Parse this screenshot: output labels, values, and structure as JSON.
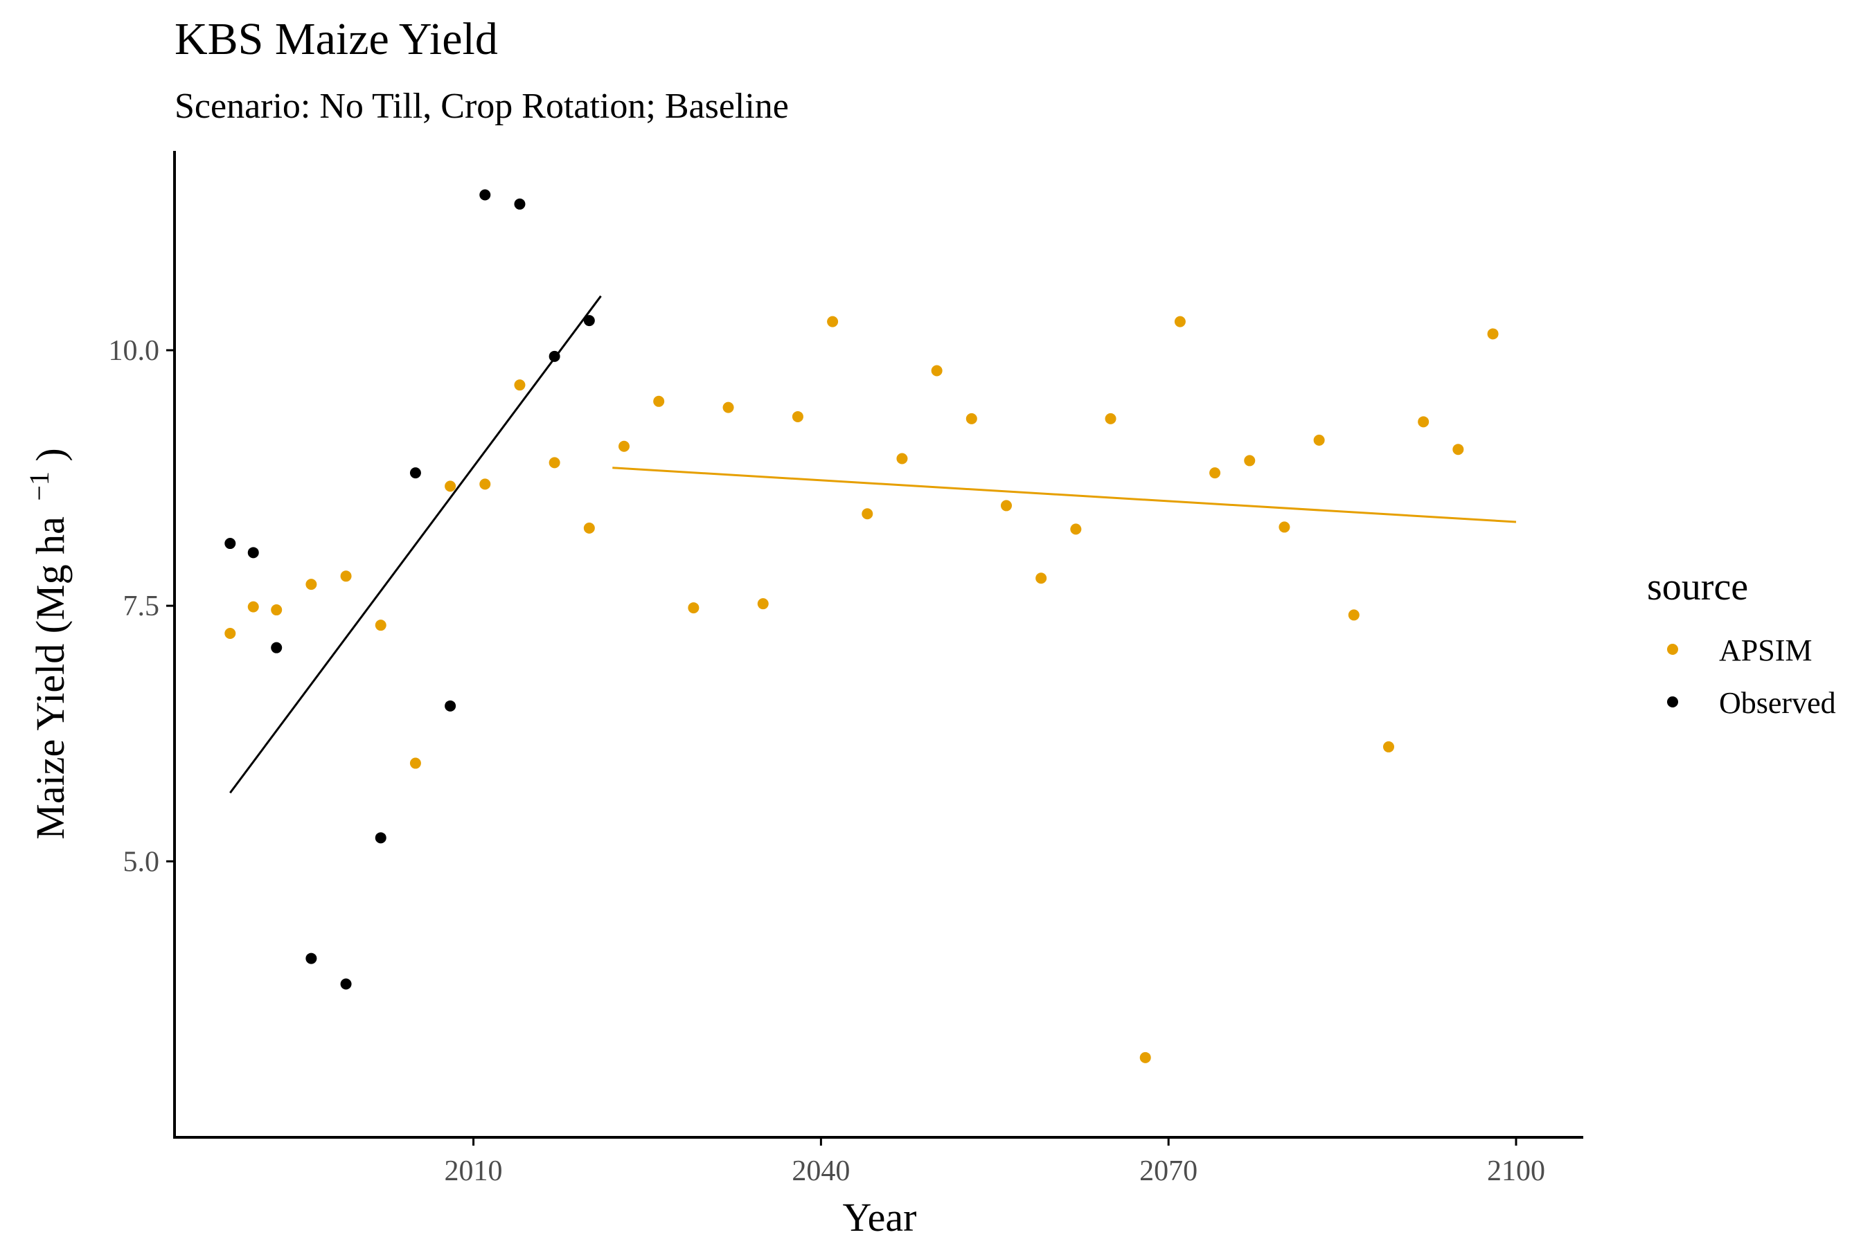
{
  "chart_data": {
    "type": "scatter",
    "title": "KBS Maize Yield",
    "subtitle": "Scenario: No Till, Crop Rotation; Baseline",
    "xlabel": "Year",
    "ylabel_main": "Maize Yield (Mg ha",
    "ylabel_sup": "−1",
    "ylabel_close": ")",
    "xlim": [
      1984.2,
      2105.8
    ],
    "ylim": [
      2.3,
      11.95
    ],
    "xticks": [
      2010,
      2040,
      2070,
      2100
    ],
    "xtick_labels": [
      "2010",
      "2040",
      "2070",
      "2100"
    ],
    "yticks": [
      5.0,
      7.5,
      10.0
    ],
    "ytick_labels": [
      "5.0",
      "7.5",
      "10.0"
    ],
    "grid": false,
    "legend": {
      "title": "source",
      "position": "right"
    },
    "colors": {
      "APSIM": "#E69F00",
      "Observed": "#000000"
    },
    "series": [
      {
        "name": "APSIM",
        "color": "#E69F00",
        "points": [
          [
            1989,
            7.23
          ],
          [
            1991,
            7.49
          ],
          [
            1993,
            7.46
          ],
          [
            1996,
            7.71
          ],
          [
            1999,
            7.79
          ],
          [
            2002,
            7.31
          ],
          [
            2005,
            5.96
          ],
          [
            2008,
            8.67
          ],
          [
            2011,
            8.69
          ],
          [
            2014,
            9.66
          ],
          [
            2017,
            8.9
          ],
          [
            2020,
            8.26
          ],
          [
            2023,
            9.06
          ],
          [
            2026,
            9.5
          ],
          [
            2029,
            7.48
          ],
          [
            2032,
            9.44
          ],
          [
            2035,
            7.52
          ],
          [
            2038,
            9.35
          ],
          [
            2041,
            10.28
          ],
          [
            2044,
            8.4
          ],
          [
            2047,
            8.94
          ],
          [
            2050,
            9.8
          ],
          [
            2053,
            9.33
          ],
          [
            2056,
            8.48
          ],
          [
            2059,
            7.77
          ],
          [
            2062,
            8.25
          ],
          [
            2065,
            9.33
          ],
          [
            2068,
            3.08
          ],
          [
            2071,
            10.28
          ],
          [
            2074,
            8.8
          ],
          [
            2077,
            8.92
          ],
          [
            2080,
            8.27
          ],
          [
            2083,
            9.12
          ],
          [
            2086,
            7.41
          ],
          [
            2089,
            6.12
          ],
          [
            2092,
            9.3
          ],
          [
            2095,
            9.03
          ],
          [
            2098,
            10.16
          ]
        ],
        "trend": [
          [
            2022,
            8.85
          ],
          [
            2100,
            8.32
          ]
        ]
      },
      {
        "name": "Observed",
        "color": "#000000",
        "points": [
          [
            1989,
            8.11
          ],
          [
            1991,
            8.02
          ],
          [
            1993,
            7.09
          ],
          [
            1996,
            4.05
          ],
          [
            1999,
            3.8
          ],
          [
            2002,
            5.23
          ],
          [
            2005,
            8.8
          ],
          [
            2008,
            6.52
          ],
          [
            2011,
            11.52
          ],
          [
            2014,
            11.43
          ],
          [
            2017,
            9.94
          ],
          [
            2020,
            10.29
          ]
        ],
        "trend": [
          [
            1989,
            5.67
          ],
          [
            2021,
            10.53
          ]
        ]
      }
    ]
  }
}
